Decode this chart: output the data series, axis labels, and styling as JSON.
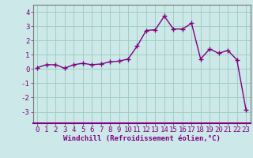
{
  "x": [
    0,
    1,
    2,
    3,
    4,
    5,
    6,
    7,
    8,
    9,
    10,
    11,
    12,
    13,
    14,
    15,
    16,
    17,
    18,
    19,
    20,
    21,
    22,
    23
  ],
  "y": [
    0.1,
    0.3,
    0.3,
    0.05,
    0.3,
    0.4,
    0.3,
    0.35,
    0.5,
    0.55,
    0.7,
    1.6,
    2.7,
    2.75,
    3.7,
    2.8,
    2.8,
    3.2,
    0.7,
    1.4,
    1.1,
    1.3,
    0.65,
    -2.85
  ],
  "line_color": "#800080",
  "marker": "+",
  "marker_size": 4,
  "marker_linewidth": 1.0,
  "bg_color": "#cce8e8",
  "grid_color": "#99ccbb",
  "xlabel": "Windchill (Refroidissement éolien,°C)",
  "xlabel_color": "#800080",
  "tick_color": "#800080",
  "spine_color": "#777777",
  "ylim": [
    -3.8,
    4.5
  ],
  "xlim": [
    -0.5,
    23.5
  ],
  "yticks": [
    -3,
    -2,
    -1,
    0,
    1,
    2,
    3,
    4
  ],
  "xticks": [
    0,
    1,
    2,
    3,
    4,
    5,
    6,
    7,
    8,
    9,
    10,
    11,
    12,
    13,
    14,
    15,
    16,
    17,
    18,
    19,
    20,
    21,
    22,
    23
  ],
  "tick_fontsize": 6.5,
  "xlabel_fontsize": 6.5,
  "linewidth": 1.0
}
